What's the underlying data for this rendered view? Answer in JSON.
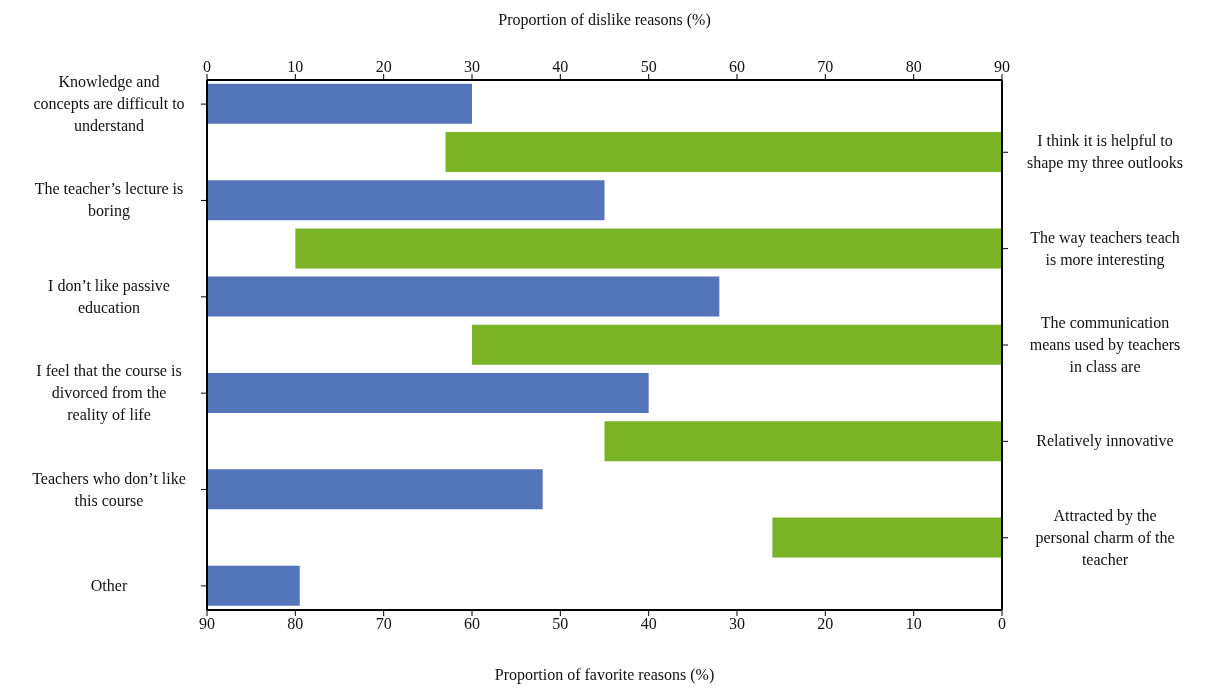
{
  "chart_data": {
    "type": "bar",
    "orientation": "horizontal",
    "xlabel": "Proportion of favorite reasons (%)",
    "x2label": "Proportion of dislike reasons (%)",
    "categories": [
      "Knowledge and concepts are difficult to understand",
      null,
      "The teacher’s lecture is boring",
      null,
      "I don’t like passive education",
      null,
      "I feel that the course is divorced from the reality of life",
      null,
      "Teachers who don’t like this course",
      null,
      "Other"
    ],
    "y2_categories": [
      null,
      "I think it is helpful to shape my three outlooks",
      null,
      "The way teachers teach is more interesting",
      null,
      "The communication means used by teachers in class are",
      null,
      "Relatively innovative",
      null,
      "Attracted by the personal charm of the teacher",
      null
    ],
    "series": [
      {
        "color": "#5575bb",
        "axis": "x2",
        "values": [
          30,
          null,
          45,
          null,
          58,
          null,
          50,
          null,
          38,
          null,
          10.5
        ]
      },
      {
        "color": "#7ab325",
        "values": [
          null,
          63,
          null,
          80,
          null,
          60,
          null,
          45,
          null,
          26,
          null
        ]
      }
    ],
    "xlim": [
      90,
      0
    ],
    "xticks": [
      90,
      80,
      70,
      60,
      50,
      40,
      30,
      20,
      10,
      0
    ],
    "x2lim": [
      0,
      90
    ],
    "x2ticks": [
      0,
      10,
      20,
      30,
      40,
      50,
      60,
      70,
      80,
      90
    ]
  }
}
